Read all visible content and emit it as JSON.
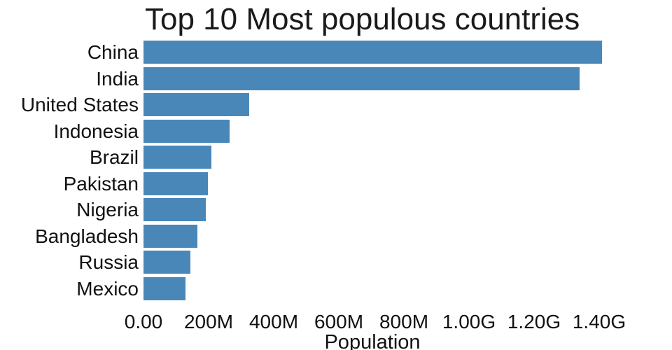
{
  "chart_data": {
    "type": "bar",
    "orientation": "horizontal",
    "title": "Top 10 Most populous countries",
    "xlabel": "Population",
    "categories": [
      "China",
      "India",
      "United States",
      "Indonesia",
      "Brazil",
      "Pakistan",
      "Nigeria",
      "Bangladesh",
      "Russia",
      "Mexico"
    ],
    "values_millions": [
      1409,
      1339,
      324,
      264,
      209,
      197,
      191,
      165,
      144,
      129
    ],
    "x_ticks": [
      {
        "label": "0.00",
        "value_millions": 0
      },
      {
        "label": "200M",
        "value_millions": 200
      },
      {
        "label": "400M",
        "value_millions": 400
      },
      {
        "label": "600M",
        "value_millions": 600
      },
      {
        "label": "800M",
        "value_millions": 800
      },
      {
        "label": "1.00G",
        "value_millions": 1000
      },
      {
        "label": "1.20G",
        "value_millions": 1200
      },
      {
        "label": "1.40G",
        "value_millions": 1400
      }
    ],
    "xlim_millions": [
      0,
      1560
    ],
    "bar_color": "#4a87b9",
    "grid": false,
    "legend": null
  }
}
